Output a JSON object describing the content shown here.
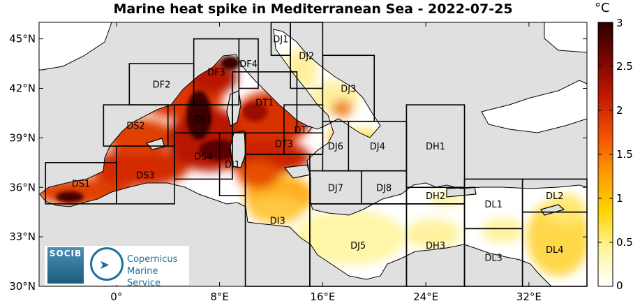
{
  "title": "Marine heat spike in Mediterranean Sea - 2022-07-25",
  "colorbar": {
    "unit": "°C",
    "ticks": [
      "3",
      "2.5",
      "2",
      "1.5",
      "1",
      "0.5",
      "0"
    ],
    "min": 0,
    "max": 3,
    "colors": [
      "#ffffff",
      "#fff59a",
      "#ffd400",
      "#ff9a00",
      "#f25000",
      "#c41a00",
      "#7a0600",
      "#2a0000"
    ]
  },
  "axes": {
    "x_ticks": [
      "0°",
      "8°E",
      "16°E",
      "24°E",
      "32°E"
    ],
    "y_ticks": [
      "45°N",
      "42°N",
      "39°N",
      "36°N",
      "33°N",
      "30°N"
    ],
    "lon_range": [
      -6,
      36.5
    ],
    "lat_range": [
      30,
      46
    ]
  },
  "regions": [
    {
      "id": "DS1",
      "label": "DS1",
      "lon": [
        -5.5,
        0
      ],
      "lat": [
        35,
        37.5
      ]
    },
    {
      "id": "DS2",
      "label": "DS2",
      "lon": [
        -1,
        4
      ],
      "lat": [
        38.5,
        41
      ]
    },
    {
      "id": "DS3",
      "label": "DS3",
      "lon": [
        0,
        4.5
      ],
      "lat": [
        35,
        38.5
      ]
    },
    {
      "id": "DS4",
      "label": "DS4",
      "lon": [
        4.5,
        9
      ],
      "lat": [
        36.5,
        39.3
      ]
    },
    {
      "id": "DF1",
      "label": "DF1",
      "lon": [
        4.5,
        9
      ],
      "lat": [
        39.3,
        41
      ]
    },
    {
      "id": "DF2",
      "label": "DF2",
      "lon": [
        1,
        6
      ],
      "lat": [
        41,
        43.5
      ]
    },
    {
      "id": "DF3",
      "label": "DF3",
      "lon": [
        6,
        9.5
      ],
      "lat": [
        41,
        45
      ]
    },
    {
      "id": "DF4",
      "label": "DF4",
      "lon": [
        9.5,
        11
      ],
      "lat": [
        42,
        45
      ]
    },
    {
      "id": "DT1",
      "label": "DT1",
      "lon": [
        9,
        14
      ],
      "lat": [
        39.3,
        43
      ]
    },
    {
      "id": "DT2",
      "label": "DT2",
      "lon": [
        13,
        16
      ],
      "lat": [
        38,
        41
      ]
    },
    {
      "id": "DT3",
      "label": "DT3",
      "lon": [
        10,
        16
      ],
      "lat": [
        38,
        39.3
      ]
    },
    {
      "id": "DI1",
      "label": "DI1",
      "lon": [
        8,
        10
      ],
      "lat": [
        35.5,
        39.3
      ]
    },
    {
      "id": "DI3",
      "label": "DI3",
      "lon": [
        10,
        15
      ],
      "lat": [
        30,
        38
      ]
    },
    {
      "id": "DJ1",
      "label": "DJ1",
      "lon": [
        12,
        13.5
      ],
      "lat": [
        44,
        46
      ]
    },
    {
      "id": "DJ2",
      "label": "DJ2",
      "lon": [
        13.5,
        16
      ],
      "lat": [
        42,
        46
      ]
    },
    {
      "id": "DJ3",
      "label": "DJ3",
      "lon": [
        16,
        20
      ],
      "lat": [
        40,
        44
      ]
    },
    {
      "id": "DJ4",
      "label": "DJ4",
      "lon": [
        18,
        22.5
      ],
      "lat": [
        37,
        40
      ]
    },
    {
      "id": "DJ5",
      "label": "DJ5",
      "lon": [
        15,
        22.5
      ],
      "lat": [
        30,
        35
      ]
    },
    {
      "id": "DJ6",
      "label": "DJ6",
      "lon": [
        16,
        18
      ],
      "lat": [
        37,
        40
      ]
    },
    {
      "id": "DJ7",
      "label": "DJ7",
      "lon": [
        15,
        19
      ],
      "lat": [
        35,
        37
      ]
    },
    {
      "id": "DJ8",
      "label": "DJ8",
      "lon": [
        19,
        22.5
      ],
      "lat": [
        35,
        37
      ]
    },
    {
      "id": "DH1",
      "label": "DH1",
      "lon": [
        22.5,
        27
      ],
      "lat": [
        36,
        41
      ]
    },
    {
      "id": "DH2",
      "label": "DH2",
      "lon": [
        22.5,
        27
      ],
      "lat": [
        35,
        36
      ]
    },
    {
      "id": "DH3",
      "label": "DH3",
      "lon": [
        22.5,
        27
      ],
      "lat": [
        30,
        35
      ]
    },
    {
      "id": "DL1",
      "label": "DL1",
      "lon": [
        27,
        31.5
      ],
      "lat": [
        33.5,
        36.5
      ]
    },
    {
      "id": "DL2",
      "label": "DL2",
      "lon": [
        31.5,
        36.5
      ],
      "lat": [
        34.5,
        36.5
      ]
    },
    {
      "id": "DL3",
      "label": "DL3",
      "lon": [
        27,
        31.5
      ],
      "lat": [
        30,
        33.5
      ]
    },
    {
      "id": "DL4",
      "label": "DL4",
      "lon": [
        31.5,
        36.5
      ],
      "lat": [
        30,
        34.5
      ]
    }
  ],
  "logos": {
    "socib": "SOCIB",
    "copernicus_line1": "Copernicus",
    "copernicus_line2": "Marine Service"
  }
}
